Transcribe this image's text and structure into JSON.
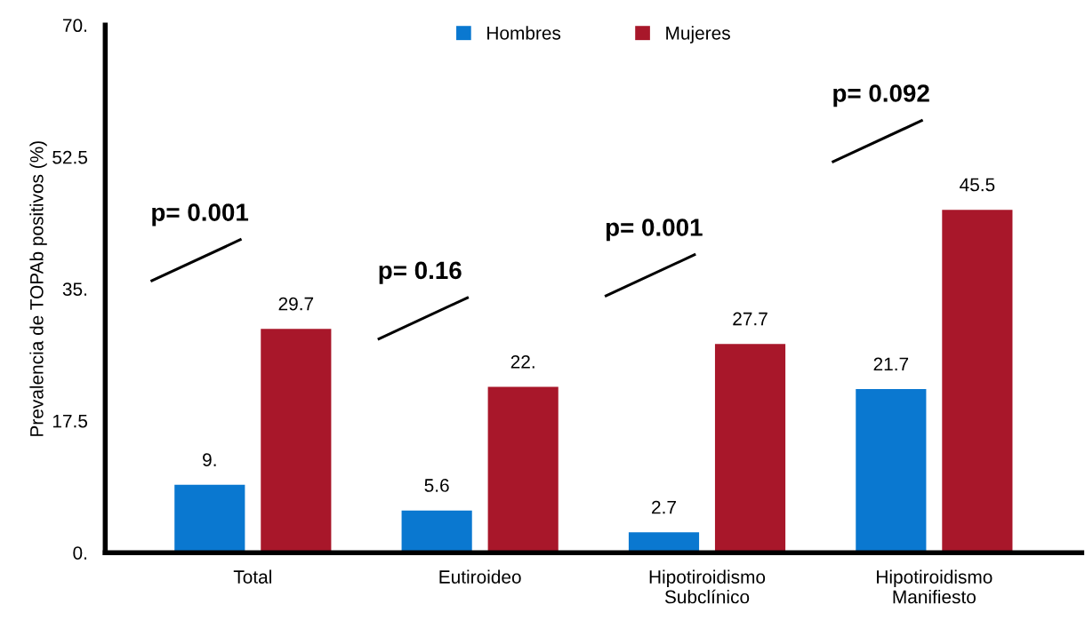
{
  "chart_data": {
    "type": "bar",
    "ylabel": "Prevalencia de TOPAb positivos (%)",
    "categories": [
      "Total",
      "Eutiroideo",
      "Hipotiroidismo\nSubclínico",
      "Hipotiroidismo\nManifiesto"
    ],
    "series": [
      {
        "name": "Hombres",
        "color": "#0a78d0",
        "values": [
          9,
          5.6,
          2.7,
          21.7
        ],
        "value_labels": [
          "9.",
          "5.6",
          "2.7",
          "21.7"
        ]
      },
      {
        "name": "Mujeres",
        "color": "#a8172a",
        "values": [
          29.7,
          22,
          27.7,
          45.5
        ],
        "value_labels": [
          "29.7",
          "22.",
          "27.7",
          "45.5"
        ]
      }
    ],
    "ylim": [
      0,
      70
    ],
    "yticks": [
      {
        "value": 0,
        "label": "0."
      },
      17.5,
      {
        "value": 35,
        "label": "35."
      },
      52.5,
      {
        "value": 70,
        "label": "70."
      }
    ],
    "annotations": [
      "p= 0.001",
      "p= 0.16",
      "p= 0.001",
      "p= 0.092"
    ],
    "grid": false,
    "legend": "top"
  }
}
